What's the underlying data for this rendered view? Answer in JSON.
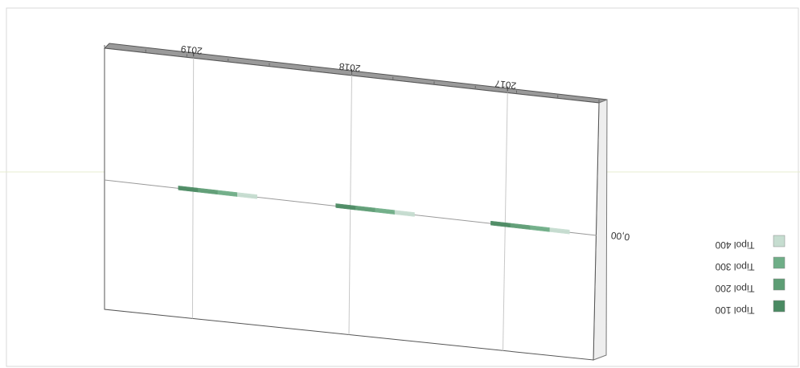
{
  "chart_data": {
    "type": "bar",
    "orientation_note": "image is rotated 180 degrees (upside down)",
    "categories": [
      "2019",
      "2018",
      "2017"
    ],
    "y_tick_label": "0,00",
    "series": [
      {
        "name": "Tipol 100",
        "color": "#4a8a62",
        "values": [
          0,
          0,
          0
        ]
      },
      {
        "name": "Tipol 200",
        "color": "#5d9d74",
        "values": [
          0,
          0,
          0
        ]
      },
      {
        "name": "Tipol 300",
        "color": "#6fae87",
        "values": [
          0,
          0,
          0
        ]
      },
      {
        "name": "Tipol 400",
        "color": "#c6ddd0",
        "values": [
          0,
          0,
          0
        ]
      }
    ],
    "legend_position": "bottom-right",
    "grid": true
  }
}
